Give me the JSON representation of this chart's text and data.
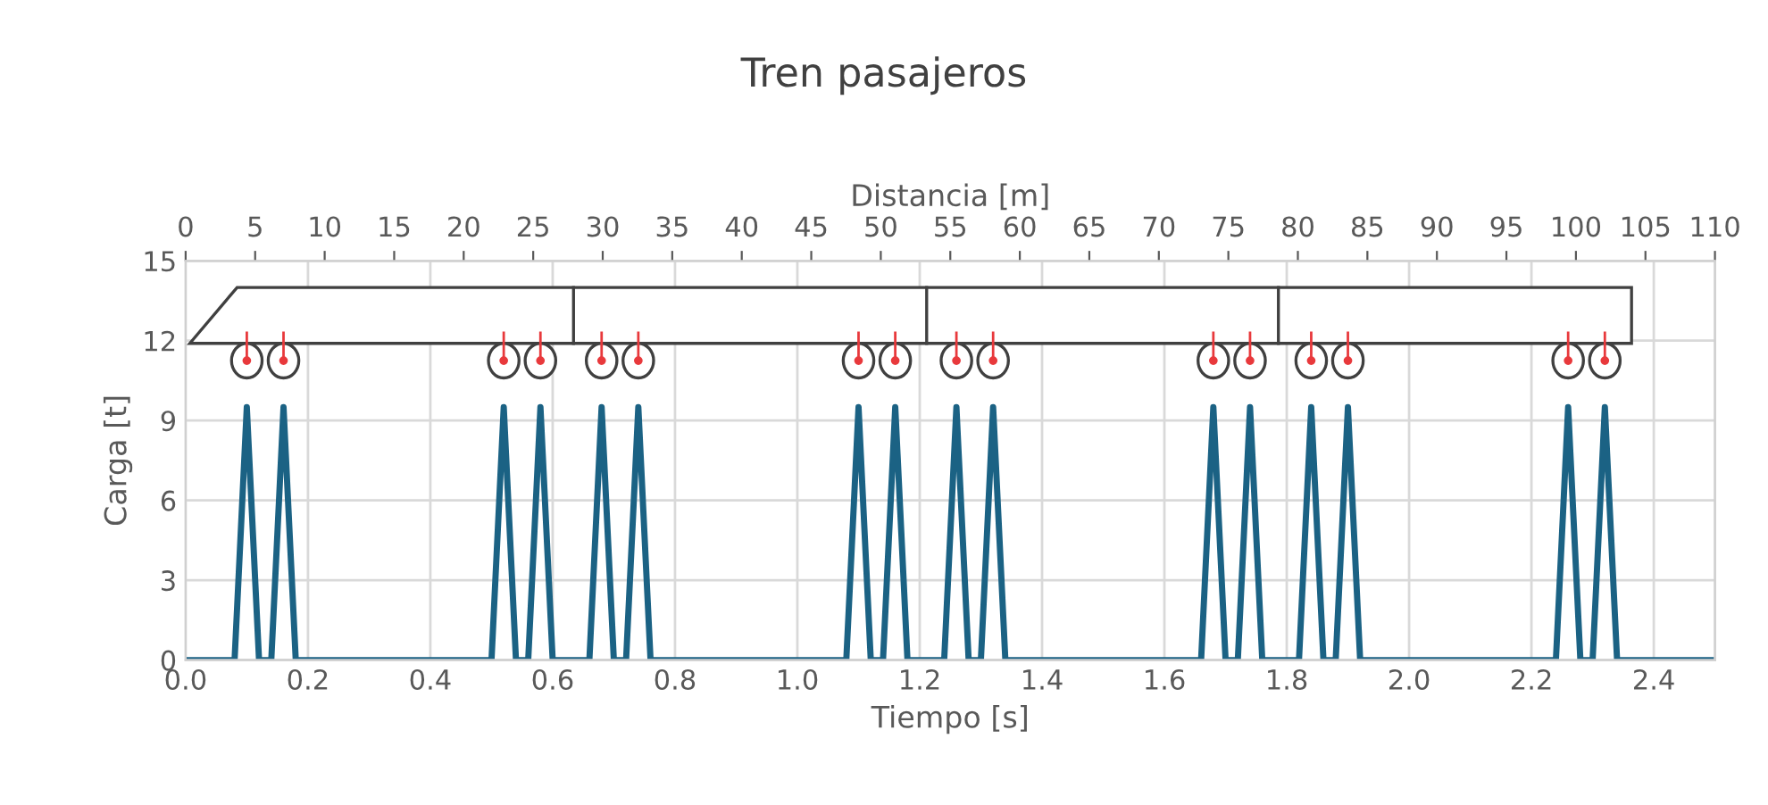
{
  "chart_data": {
    "type": "line",
    "title": "Tren pasajeros",
    "xlabel": "Tiempo [s]",
    "x2label": "Distancia [m]",
    "ylabel": "Carga [t]",
    "x": [
      0,
      0.08,
      0.1,
      0.12,
      0.14,
      0.16,
      0.18,
      0.5,
      0.52,
      0.54,
      0.56,
      0.58,
      0.6,
      0.66,
      0.68,
      0.7,
      0.72,
      0.74,
      0.76,
      1.08,
      1.1,
      1.12,
      1.14,
      1.16,
      1.18,
      1.24,
      1.26,
      1.28,
      1.3,
      1.32,
      1.34,
      1.66,
      1.68,
      1.7,
      1.72,
      1.74,
      1.76,
      1.82,
      1.84,
      1.86,
      1.88,
      1.9,
      1.92,
      2.24,
      2.26,
      2.28,
      2.3,
      2.32,
      2.34,
      2.5
    ],
    "series": [
      {
        "color": "#1b6284",
        "values": [
          0,
          0,
          9.5,
          0,
          0,
          9.5,
          0,
          0,
          9.5,
          0,
          0,
          9.5,
          0,
          0,
          9.5,
          0,
          0,
          9.5,
          0,
          0,
          9.5,
          0,
          0,
          9.5,
          0,
          0,
          9.5,
          0,
          0,
          9.5,
          0,
          0,
          9.5,
          0,
          0,
          9.5,
          0,
          0,
          9.5,
          0,
          0,
          9.5,
          0,
          0,
          9.5,
          0,
          0,
          9.5,
          0,
          0
        ]
      }
    ],
    "xlim": [
      0,
      2.5
    ],
    "xticks": [
      {
        "value": 0,
        "label": "0.0"
      },
      {
        "value": 0.2,
        "label": "0.2"
      },
      {
        "value": 0.4,
        "label": "0.4"
      },
      {
        "value": 0.6,
        "label": "0.6"
      },
      {
        "value": 0.8,
        "label": "0.8"
      },
      {
        "value": 1.0,
        "label": "1.0"
      },
      {
        "value": 1.2,
        "label": "1.2"
      },
      {
        "value": 1.4,
        "label": "1.4"
      },
      {
        "value": 1.6,
        "label": "1.6"
      },
      {
        "value": 1.8,
        "label": "1.8"
      },
      {
        "value": 2.0,
        "label": "2.0"
      },
      {
        "value": 2.2,
        "label": "2.2"
      },
      {
        "value": 2.4,
        "label": "2.4"
      }
    ],
    "x2lim": [
      0,
      110
    ],
    "x2ticks": [
      0,
      5,
      10,
      15,
      20,
      25,
      30,
      35,
      40,
      45,
      50,
      55,
      60,
      65,
      70,
      75,
      80,
      85,
      90,
      95,
      100,
      105,
      110
    ],
    "ylim": [
      0,
      15
    ],
    "yticks": [
      0,
      3,
      6,
      9,
      12,
      15
    ],
    "grid": true,
    "legend": false,
    "marker": "none",
    "line_style": "solid"
  }
}
